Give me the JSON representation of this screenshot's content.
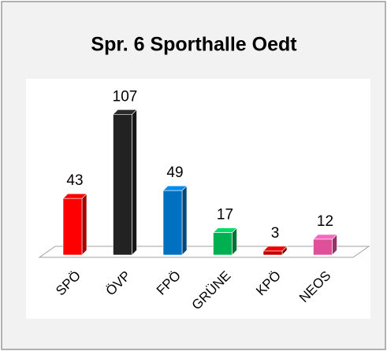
{
  "chart_data": {
    "type": "bar3d",
    "title": "Spr. 6 Sporthalle Oedt",
    "categories": [
      "SPÖ",
      "ÖVP",
      "FPÖ",
      "GRÜNE",
      "KPÖ",
      "NEOS"
    ],
    "values": [
      43,
      107,
      49,
      17,
      3,
      12
    ],
    "colors": [
      "#ff0000",
      "#222222",
      "#0070c0",
      "#00b050",
      "#c00000",
      "#e0509a"
    ]
  }
}
